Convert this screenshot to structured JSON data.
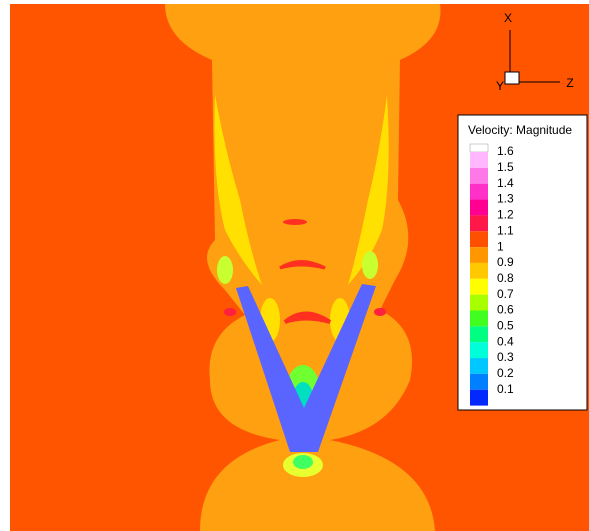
{
  "legend": {
    "title": "Velocity: Magnitude",
    "levels": [
      {
        "label": 1.6,
        "color": "#ffb8ff"
      },
      {
        "label": 1.5,
        "color": "#ff78e8"
      },
      {
        "label": 1.4,
        "color": "#ff30c8"
      },
      {
        "label": 1.3,
        "color": "#ff0090"
      },
      {
        "label": 1.2,
        "color": "#ff1848"
      },
      {
        "label": 1.1,
        "color": "#ff5000"
      },
      {
        "label": 1,
        "color": "#ff9800"
      },
      {
        "label": 0.9,
        "color": "#ffc800"
      },
      {
        "label": 0.8,
        "color": "#ffff00"
      },
      {
        "label": 0.7,
        "color": "#a8ff00"
      },
      {
        "label": 0.6,
        "color": "#40ff20"
      },
      {
        "label": 0.5,
        "color": "#00ff80"
      },
      {
        "label": 0.4,
        "color": "#00ffd8"
      },
      {
        "label": 0.3,
        "color": "#00c8ff"
      },
      {
        "label": 0.2,
        "color": "#0080ff"
      },
      {
        "label": 0.1,
        "color": "#0028ff"
      }
    ]
  },
  "axes": {
    "x": "X",
    "y": "Y",
    "z": "Z"
  }
}
